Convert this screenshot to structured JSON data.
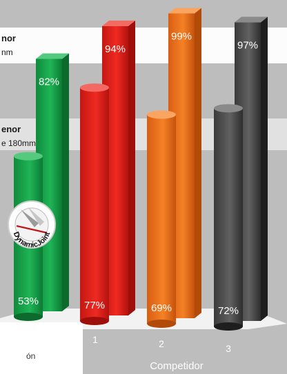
{
  "chart_data": {
    "type": "bar",
    "title": "",
    "legend_labels": {
      "row_top_name": "nor",
      "row_top_sub": "nm",
      "row_bottom_name": "enor",
      "row_bottom_sub": "e 180mm"
    },
    "axis": {
      "categories": [
        "",
        "1",
        "2",
        "3"
      ],
      "xlabel": "Competidor",
      "bottom_left_fragment": "ón"
    },
    "logo_text": "DynamicJoint",
    "series": [
      {
        "name": "",
        "values": [
          82,
          94,
          99,
          97
        ],
        "labels": [
          "82%",
          "94%",
          "99%",
          "97%"
        ]
      },
      {
        "name": "",
        "values": [
          53,
          77,
          69,
          72
        ],
        "labels": [
          "53%",
          "77%",
          "69%",
          "72%"
        ]
      }
    ],
    "colors": {
      "green": "#14a14a",
      "red": "#e3211c",
      "orange": "#ee6d1c",
      "gray": "#4a4a4a"
    }
  }
}
